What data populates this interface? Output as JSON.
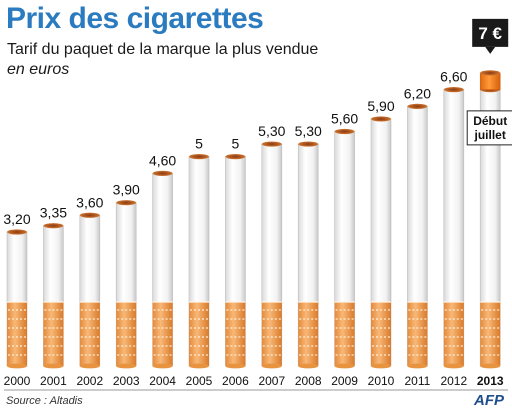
{
  "header": {
    "title": "Prix des cigarettes",
    "subtitle": "Tarif du paquet de la marque la plus vendue",
    "unit": "en euros"
  },
  "footer": {
    "source": "Source : Altadis",
    "logo": "AFP"
  },
  "colors": {
    "title": "#2a7bbf",
    "filter": "#f5a35a",
    "tip": "#b04a18",
    "callout_bg": "#1a1a1a",
    "future_filter": "#f28a1e"
  },
  "chart_data": {
    "type": "bar",
    "title": "Prix des cigarettes",
    "subtitle": "Tarif du paquet de la marque la plus vendue",
    "ylabel": "en euros",
    "xlabel": "",
    "ylim": [
      0,
      7
    ],
    "grid": false,
    "categories": [
      "2000",
      "2001",
      "2002",
      "2003",
      "2004",
      "2005",
      "2006",
      "2007",
      "2008",
      "2009",
      "2010",
      "2011",
      "2012",
      "2013"
    ],
    "values": [
      3.2,
      3.35,
      3.6,
      3.9,
      4.6,
      5,
      5,
      5.3,
      5.3,
      5.6,
      5.9,
      6.2,
      6.6,
      6.6
    ],
    "value_labels": [
      "3,20",
      "3,35",
      "3,60",
      "3,90",
      "4,60",
      "5",
      "5",
      "5,30",
      "5,30",
      "5,60",
      "5,90",
      "6,20",
      "6,60",
      ""
    ],
    "highlight_category": "2013",
    "forecast": {
      "category": "2013",
      "value": 7,
      "label": "7 €",
      "note_line1": "Début",
      "note_line2": "juillet"
    }
  }
}
